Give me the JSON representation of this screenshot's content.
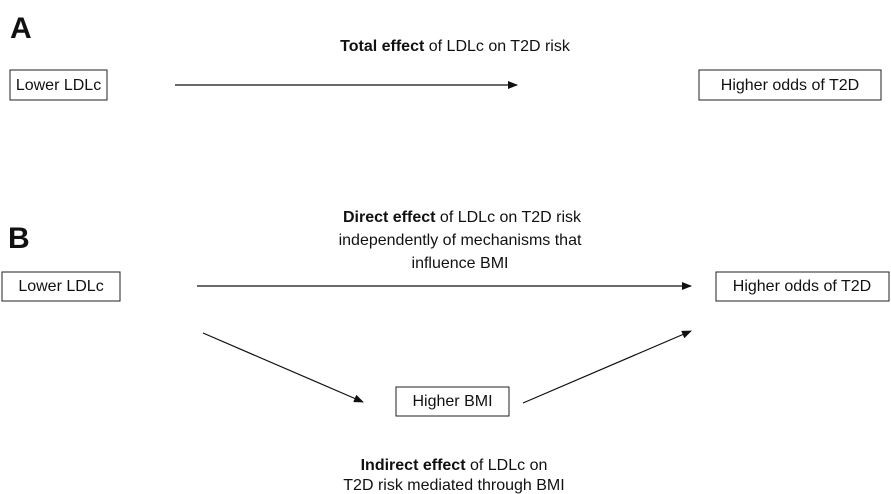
{
  "panel_a": {
    "label": "A",
    "caption_bold": "Total effect",
    "caption_rest": "of LDLc on T2D risk",
    "source": "Lower LDLc",
    "target": "Higher odds of T2D"
  },
  "panel_b": {
    "label": "B",
    "direct_bold": "Direct effect",
    "direct_rest": "of LDLc on T2D risk",
    "direct_line2": "independently of mechanisms that",
    "direct_line3": "influence BMI",
    "source": "Lower LDLc",
    "target": "Higher odds of T2D",
    "mediator": "Higher BMI",
    "indirect_bold": "Indirect effect",
    "indirect_rest": "of LDLc on",
    "indirect_line2": "T2D risk mediated through BMI"
  }
}
